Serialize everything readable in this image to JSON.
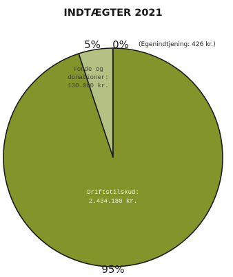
{
  "chart_data": {
    "type": "pie",
    "title": "INDTÆGTER 2021",
    "slices": [
      {
        "label_lines": [
          "Driftstilskud:",
          "2.434.180 kr."
        ],
        "value": 2434180,
        "percent_label": "95%",
        "color": "#83942a"
      },
      {
        "label_lines": [
          "Fonde og",
          "donationer:",
          "130.000 kr."
        ],
        "value": 130000,
        "percent_label": "5%",
        "color": "#b3c282"
      },
      {
        "label_lines": [],
        "value": 426,
        "percent_label": "0%",
        "note": "(Egenindtjening: 426 kr.)",
        "color": "#b3c282"
      }
    ],
    "stroke_color": "#1a1a1a"
  }
}
